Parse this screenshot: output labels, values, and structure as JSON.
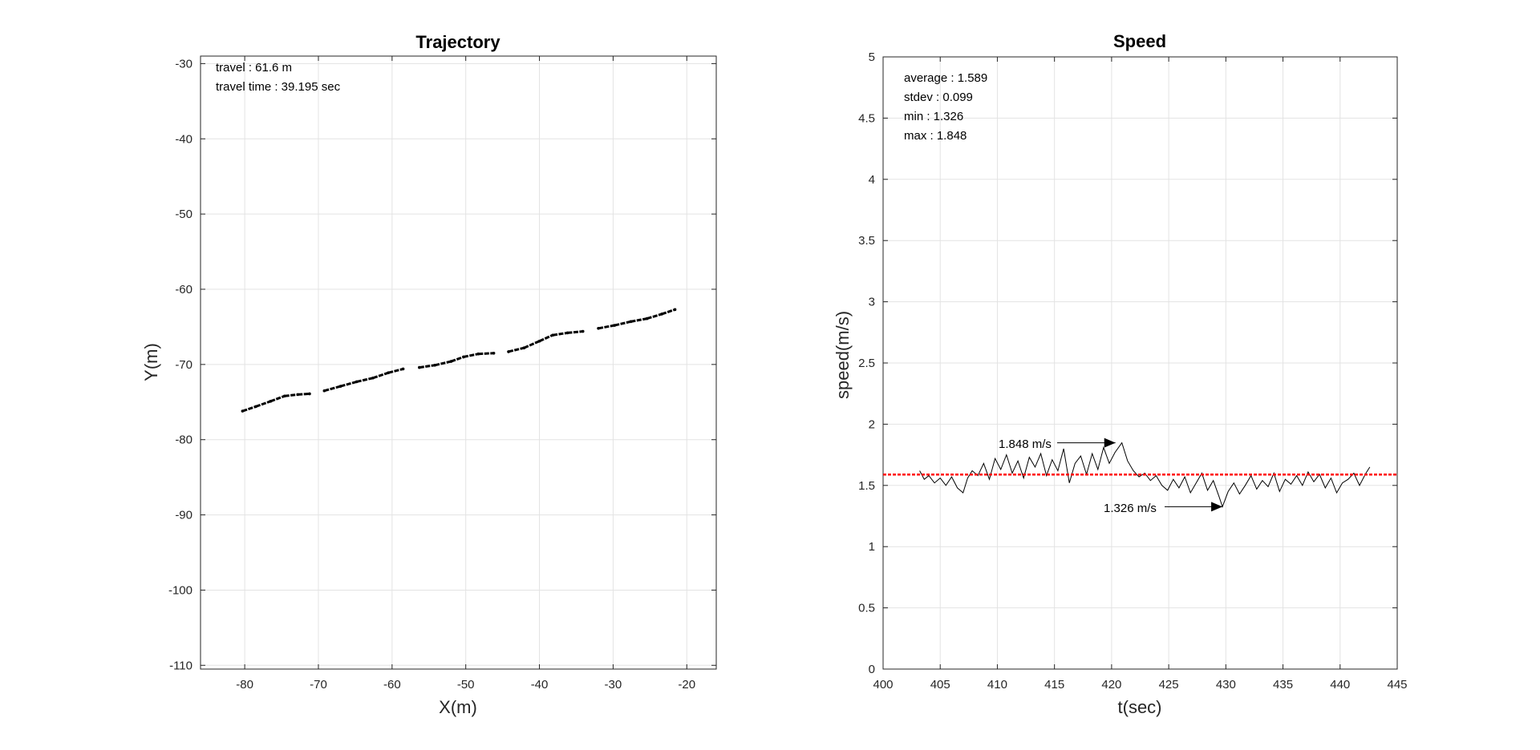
{
  "chart_data": [
    {
      "type": "scatter",
      "title": "Trajectory",
      "xlabel": "X(m)",
      "ylabel": "Y(m)",
      "xlim": [
        -86,
        -16
      ],
      "ylim": [
        -110.5,
        -29
      ],
      "xticks": [
        -80,
        -70,
        -60,
        -50,
        -40,
        -30,
        -20
      ],
      "yticks": [
        -30,
        -40,
        -50,
        -60,
        -70,
        -80,
        -90,
        -100,
        -110
      ],
      "grid": true,
      "color": "#000000",
      "annotations": [
        "travel : 61.6 m",
        "travel time : 39.195 sec"
      ],
      "series": [
        {
          "x": [
            -80.3,
            -78.5,
            -76.5,
            -74.6,
            -72.8,
            -71.2,
            -69.2,
            -67.0,
            -64.8,
            -62.6,
            -60.5,
            -58.5,
            -56.3,
            -54.2,
            -52.0,
            -50.3,
            -48.3,
            -46.2,
            -44.2,
            -42.1,
            -40.0,
            -38.2,
            -36.2,
            -34.1,
            -32.0,
            -29.8,
            -27.6,
            -25.4,
            -23.4,
            -21.6
          ],
          "y": [
            -76.2,
            -75.6,
            -74.9,
            -74.2,
            -74.0,
            -73.9,
            -73.5,
            -72.9,
            -72.3,
            -71.8,
            -71.1,
            -70.6,
            -70.4,
            -70.1,
            -69.6,
            -69.0,
            -68.6,
            -68.5,
            -68.3,
            -67.8,
            -66.9,
            -66.1,
            -65.8,
            -65.6,
            -65.2,
            -64.8,
            -64.3,
            -63.9,
            -63.3,
            -62.7
          ]
        }
      ]
    },
    {
      "type": "line",
      "title": "Speed",
      "xlabel": "t(sec)",
      "ylabel": "speed(m/s)",
      "xlim": [
        400,
        445
      ],
      "ylim": [
        0,
        5
      ],
      "xticks": [
        400,
        405,
        410,
        415,
        420,
        425,
        430,
        435,
        440,
        445
      ],
      "yticks": [
        0,
        0.5,
        1,
        1.5,
        2,
        2.5,
        3,
        3.5,
        4,
        4.5,
        5
      ],
      "grid": true,
      "annotations": [
        "average : 1.589",
        "stdev : 0.099",
        "min : 1.326",
        "max : 1.848"
      ],
      "average_line": {
        "value": 1.589,
        "color": "#ff0000",
        "style": "dotted"
      },
      "arrows": [
        {
          "label": "1.848 m/s",
          "x": 420.9,
          "y": 1.848
        },
        {
          "label": "1.326 m/s",
          "x": 429.7,
          "y": 1.326
        }
      ],
      "series": [
        {
          "color": "#000000",
          "x": [
            403.2,
            403.6,
            404.0,
            404.5,
            405.0,
            405.5,
            406.0,
            406.5,
            407.0,
            407.4,
            407.8,
            408.3,
            408.8,
            409.3,
            409.8,
            410.3,
            410.8,
            411.3,
            411.8,
            412.3,
            412.8,
            413.3,
            413.8,
            414.3,
            414.8,
            415.3,
            415.8,
            416.3,
            416.8,
            417.3,
            417.8,
            418.3,
            418.8,
            419.3,
            419.8,
            420.3,
            420.9,
            421.4,
            421.9,
            422.4,
            422.9,
            423.4,
            423.9,
            424.4,
            424.9,
            425.4,
            425.9,
            426.4,
            426.9,
            427.4,
            427.9,
            428.4,
            428.9,
            429.4,
            429.7,
            430.2,
            430.7,
            431.2,
            431.7,
            432.2,
            432.7,
            433.2,
            433.7,
            434.2,
            434.7,
            435.2,
            435.7,
            436.2,
            436.7,
            437.2,
            437.7,
            438.2,
            438.7,
            439.2,
            439.7,
            440.2,
            440.7,
            441.2,
            441.7,
            442.2,
            442.6
          ],
          "y": [
            1.62,
            1.55,
            1.58,
            1.52,
            1.56,
            1.5,
            1.57,
            1.48,
            1.44,
            1.56,
            1.62,
            1.58,
            1.68,
            1.55,
            1.72,
            1.63,
            1.75,
            1.6,
            1.7,
            1.56,
            1.73,
            1.65,
            1.76,
            1.58,
            1.71,
            1.62,
            1.8,
            1.52,
            1.68,
            1.74,
            1.59,
            1.76,
            1.63,
            1.81,
            1.68,
            1.77,
            1.848,
            1.7,
            1.62,
            1.57,
            1.6,
            1.54,
            1.58,
            1.5,
            1.46,
            1.55,
            1.48,
            1.57,
            1.44,
            1.52,
            1.6,
            1.46,
            1.54,
            1.41,
            1.326,
            1.45,
            1.52,
            1.43,
            1.5,
            1.58,
            1.47,
            1.54,
            1.49,
            1.6,
            1.45,
            1.55,
            1.51,
            1.58,
            1.5,
            1.61,
            1.53,
            1.59,
            1.48,
            1.56,
            1.44,
            1.52,
            1.55,
            1.6,
            1.5,
            1.59,
            1.65
          ]
        }
      ]
    }
  ]
}
